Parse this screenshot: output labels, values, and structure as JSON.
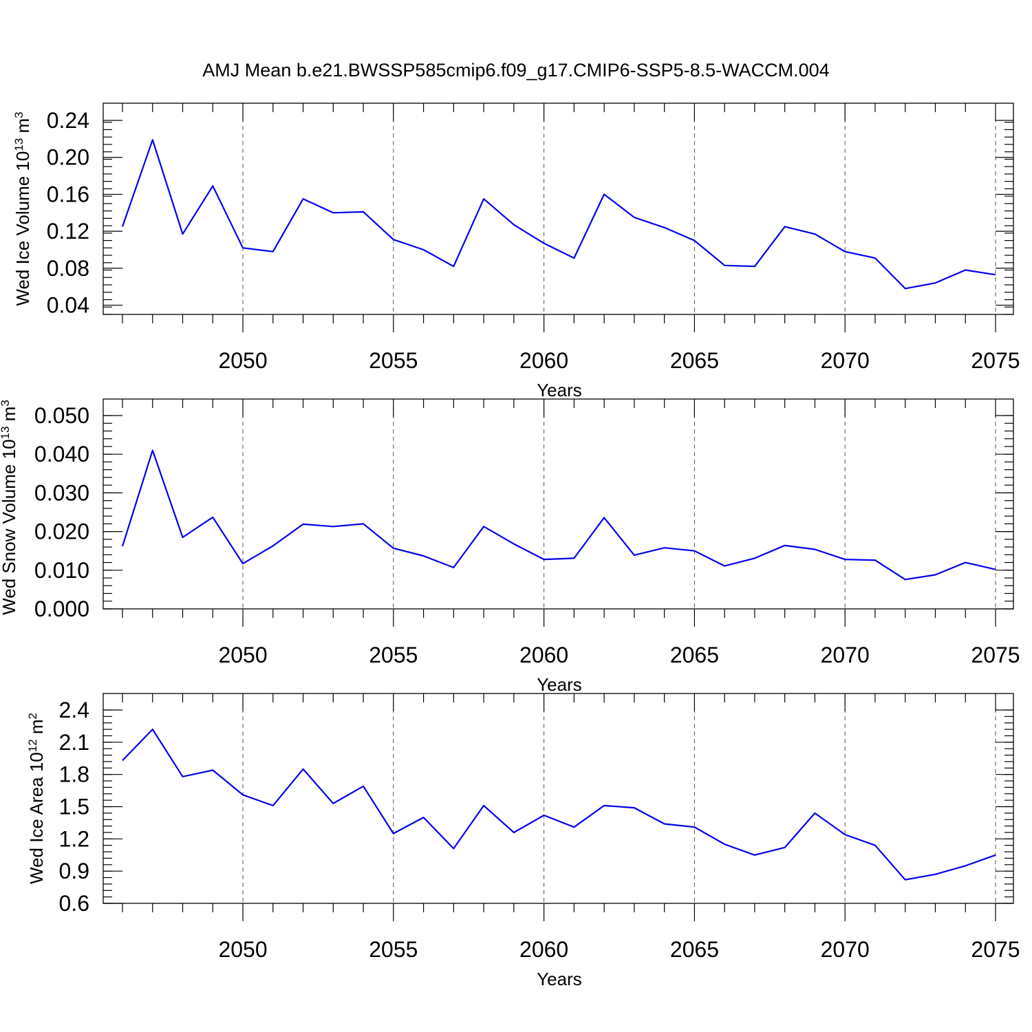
{
  "title": "AMJ Mean b.e21.BWSSP585cmip6.f09_g17.CMIP6-SSP5-8.5-WACCM.004",
  "line_color": "#0000ee",
  "chart_data": [
    {
      "type": "line",
      "name_key": "ice-volume",
      "ylabel": "Wed Ice Volume 10",
      "ylabel_exp": "13",
      "ylabel_unit": " m",
      "ylabel_unit_exp": "3",
      "xlabel": "Years",
      "xlim": [
        2046,
        2075
      ],
      "ylim": [
        0.03,
        0.24
      ],
      "yticks": [
        0.04,
        0.08,
        0.12,
        0.16,
        0.2,
        0.24
      ],
      "ytick_labels": [
        "0.04",
        "0.08",
        "0.12",
        "0.16",
        "0.20",
        "0.24"
      ],
      "xticks": [
        2050,
        2055,
        2060,
        2065,
        2070,
        2075
      ],
      "xtick_labels": [
        "2050",
        "2055",
        "2060",
        "2065",
        "2070",
        "2075"
      ],
      "grid": true,
      "x": [
        2046,
        2047,
        2048,
        2049,
        2050,
        2051,
        2052,
        2053,
        2054,
        2055,
        2056,
        2057,
        2058,
        2059,
        2060,
        2061,
        2062,
        2063,
        2064,
        2065,
        2066,
        2067,
        2068,
        2069,
        2070,
        2071,
        2072,
        2073,
        2074,
        2075
      ],
      "values": [
        0.125,
        0.219,
        0.117,
        0.169,
        0.102,
        0.098,
        0.155,
        0.14,
        0.141,
        0.111,
        0.1,
        0.082,
        0.155,
        0.127,
        0.107,
        0.091,
        0.16,
        0.135,
        0.124,
        0.11,
        0.083,
        0.082,
        0.125,
        0.117,
        0.098,
        0.091,
        0.058,
        0.064,
        0.078,
        0.073
      ]
    },
    {
      "type": "line",
      "name_key": "snow-volume",
      "ylabel": "Wed Snow Volume 10",
      "ylabel_exp": "13",
      "ylabel_unit": " m",
      "ylabel_unit_exp": "3",
      "xlabel": "Years",
      "xlim": [
        2046,
        2075
      ],
      "ylim": [
        0.0,
        0.05
      ],
      "yticks": [
        0.0,
        0.01,
        0.02,
        0.03,
        0.04,
        0.05
      ],
      "ytick_labels": [
        "0.000",
        "0.010",
        "0.020",
        "0.030",
        "0.040",
        "0.050"
      ],
      "xticks": [
        2050,
        2055,
        2060,
        2065,
        2070,
        2075
      ],
      "xtick_labels": [
        "2050",
        "2055",
        "2060",
        "2065",
        "2070",
        "2075"
      ],
      "grid": true,
      "x": [
        2046,
        2047,
        2048,
        2049,
        2050,
        2051,
        2052,
        2053,
        2054,
        2055,
        2056,
        2057,
        2058,
        2059,
        2060,
        2061,
        2062,
        2063,
        2064,
        2065,
        2066,
        2067,
        2068,
        2069,
        2070,
        2071,
        2072,
        2073,
        2074,
        2075
      ],
      "values": [
        0.0162,
        0.041,
        0.0185,
        0.0237,
        0.0117,
        0.0163,
        0.0219,
        0.0213,
        0.022,
        0.0157,
        0.0137,
        0.0107,
        0.0213,
        0.0168,
        0.0128,
        0.0131,
        0.0236,
        0.0139,
        0.0158,
        0.015,
        0.0111,
        0.0131,
        0.0164,
        0.0154,
        0.0128,
        0.0126,
        0.0076,
        0.0088,
        0.012,
        0.0102
      ]
    },
    {
      "type": "line",
      "name_key": "ice-area",
      "ylabel": "Wed Ice Area 10",
      "ylabel_exp": "12",
      "ylabel_unit": " m",
      "ylabel_unit_exp": "2",
      "xlabel": "Years",
      "xlim": [
        2046,
        2075
      ],
      "ylim": [
        0.6,
        2.4
      ],
      "yticks": [
        0.6,
        0.9,
        1.2,
        1.5,
        1.8,
        2.1,
        2.4
      ],
      "ytick_labels": [
        "0.6",
        "0.9",
        "1.2",
        "1.5",
        "1.8",
        "2.1",
        "2.4"
      ],
      "xticks": [
        2050,
        2055,
        2060,
        2065,
        2070,
        2075
      ],
      "xtick_labels": [
        "2050",
        "2055",
        "2060",
        "2065",
        "2070",
        "2075"
      ],
      "grid": true,
      "x": [
        2046,
        2047,
        2048,
        2049,
        2050,
        2051,
        2052,
        2053,
        2054,
        2055,
        2056,
        2057,
        2058,
        2059,
        2060,
        2061,
        2062,
        2063,
        2064,
        2065,
        2066,
        2067,
        2068,
        2069,
        2070,
        2071,
        2072,
        2073,
        2074,
        2075
      ],
      "values": [
        1.93,
        2.22,
        1.78,
        1.84,
        1.61,
        1.51,
        1.85,
        1.53,
        1.69,
        1.25,
        1.4,
        1.11,
        1.51,
        1.26,
        1.42,
        1.31,
        1.51,
        1.49,
        1.34,
        1.31,
        1.15,
        1.05,
        1.12,
        1.44,
        1.24,
        1.14,
        0.82,
        0.87,
        0.95,
        1.05
      ]
    }
  ]
}
